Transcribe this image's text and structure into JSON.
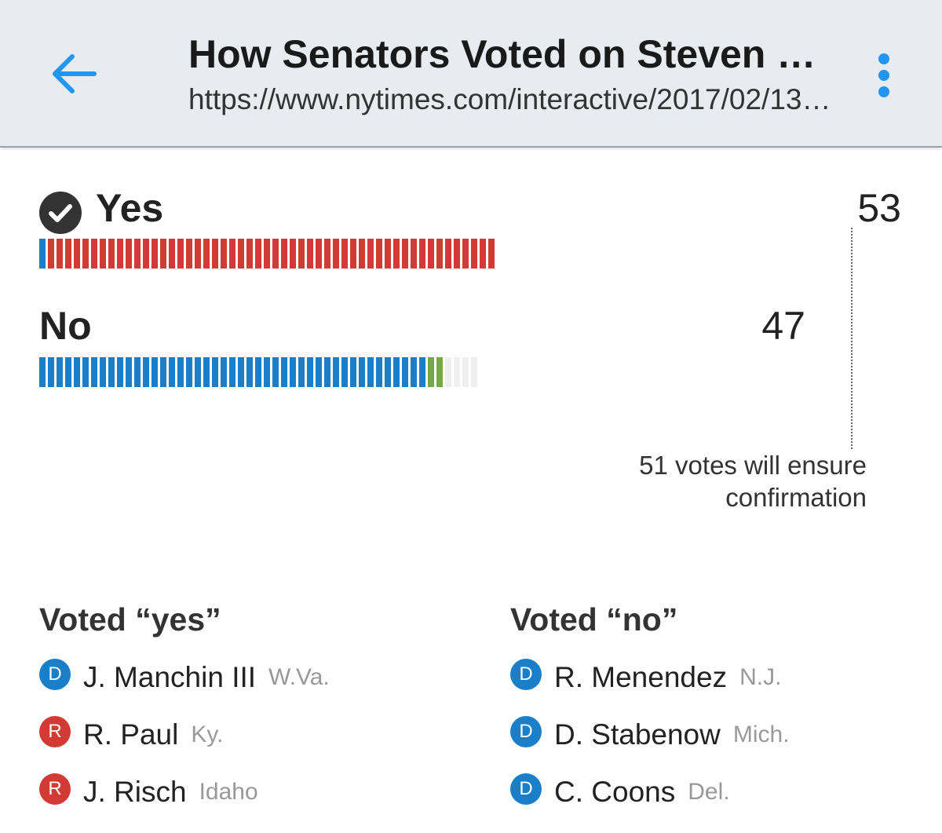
{
  "header": {
    "title": "How Senators Voted on Steven M…",
    "url": "https://www.nytimes.com/interactive/2017/02/13…"
  },
  "colors": {
    "democrat": "#1a7fc8",
    "republican": "#d13a35",
    "independent": "#75a84a",
    "vacant": "#efefef",
    "accent": "#2196f3"
  },
  "icons": {
    "back": "arrow-left-icon",
    "menu": "more-vertical-icon",
    "check": "check-circle-icon"
  },
  "chart_data": {
    "type": "bar",
    "categories": [
      "Yes",
      "No"
    ],
    "values": [
      53,
      47
    ],
    "series": [
      {
        "name": "D",
        "values": [
          1,
          45
        ]
      },
      {
        "name": "R",
        "values": [
          52,
          0
        ]
      },
      {
        "name": "Independent",
        "values": [
          0,
          2
        ]
      }
    ],
    "total_seats": 100,
    "threshold": 51,
    "threshold_label": "51 votes will ensure confirmation",
    "winner": "Yes"
  },
  "votes": {
    "yes_label": "Yes",
    "yes_count": "53",
    "no_label": "No",
    "no_count": "47"
  },
  "lists": {
    "yes_heading": "Voted “yes”",
    "no_heading": "Voted “no”",
    "yes": [
      {
        "party": "D",
        "name": "J. Manchin III",
        "state": "W.Va."
      },
      {
        "party": "R",
        "name": "R. Paul",
        "state": "Ky."
      },
      {
        "party": "R",
        "name": "J. Risch",
        "state": "Idaho"
      }
    ],
    "no": [
      {
        "party": "D",
        "name": "R. Menendez",
        "state": "N.J."
      },
      {
        "party": "D",
        "name": "D. Stabenow",
        "state": "Mich."
      },
      {
        "party": "D",
        "name": "C. Coons",
        "state": "Del."
      }
    ]
  }
}
